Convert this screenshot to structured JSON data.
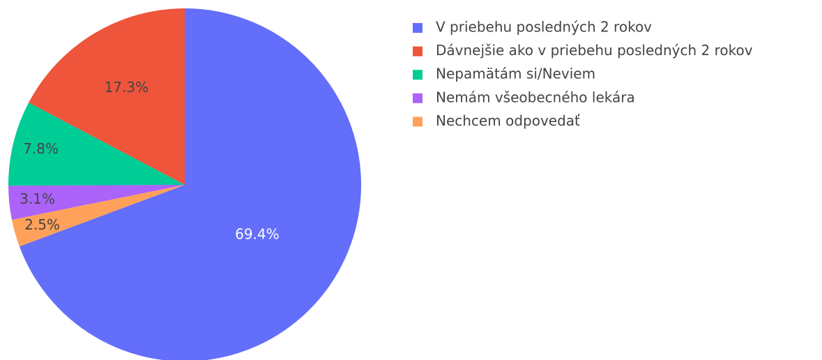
{
  "chart_data": {
    "type": "pie",
    "categories": [
      "V priebehu posledných 2 rokov",
      "Dávnejšie ako v priebehu posledných 2 rokov",
      "Nepamätám si/Neviem",
      "Nemám všeobecného lekára",
      "Nechcem odpovedať"
    ],
    "values": [
      69.4,
      17.3,
      7.8,
      3.1,
      2.5
    ],
    "value_labels": [
      "69.4%",
      "17.3%",
      "7.8%",
      "3.1%",
      "2.5%"
    ],
    "colors": [
      "#636efa",
      "#EF553B",
      "#00cc96",
      "#ab63fa",
      "#FFA15A"
    ],
    "legend": "right"
  }
}
